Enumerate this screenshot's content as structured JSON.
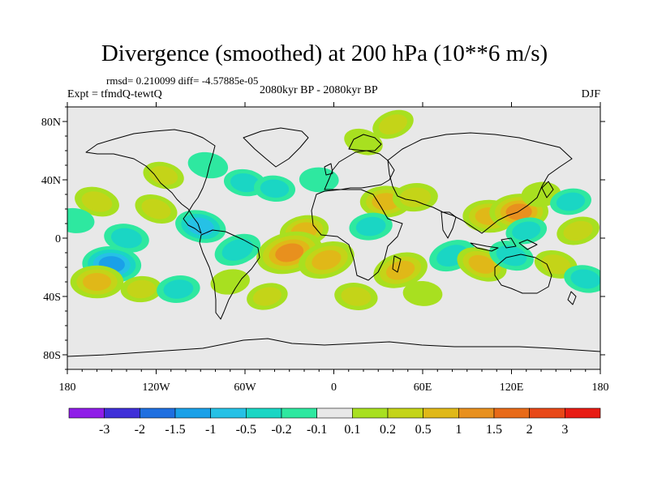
{
  "title": "Divergence (smoothed) at 200 hPa (10**6 m/s)",
  "stats": "rmsd= 0.210099 diff= -4.57885e-05",
  "experiment": "Expt = tfmdQ-tewtQ",
  "period": "2080kyr BP - 2080kyr BP",
  "season": "DJF",
  "chart_data": {
    "type": "heatmap",
    "projection": "cylindrical-equidistant",
    "xlim": [
      -180,
      180
    ],
    "ylim": [
      -90,
      90
    ],
    "x_ticks": [
      {
        "value": -180,
        "label": "180"
      },
      {
        "value": -120,
        "label": "120W"
      },
      {
        "value": -60,
        "label": "60W"
      },
      {
        "value": 0,
        "label": "0"
      },
      {
        "value": 60,
        "label": "60E"
      },
      {
        "value": 120,
        "label": "120E"
      },
      {
        "value": 180,
        "label": "180"
      }
    ],
    "y_ticks": [
      {
        "value": 80,
        "label": "80N"
      },
      {
        "value": 40,
        "label": "40N"
      },
      {
        "value": 0,
        "label": "0"
      },
      {
        "value": -40,
        "label": "40S"
      },
      {
        "value": -80,
        "label": "80S"
      }
    ],
    "colorbar": {
      "levels": [
        "-3",
        "-2",
        "-1.5",
        "-1",
        "-0.5",
        "-0.2",
        "-0.1",
        "0.1",
        "0.2",
        "0.5",
        "1",
        "1.5",
        "2",
        "3"
      ],
      "colors": [
        "#8f1de8",
        "#3f2fd8",
        "#1f6fe0",
        "#1aa0e8",
        "#26c1e6",
        "#1ad6c4",
        "#2ee8a0",
        "#e8e8e8",
        "#a8e020",
        "#c4d418",
        "#e0b818",
        "#e8901e",
        "#e86a18",
        "#e84818",
        "#e81c14"
      ]
    },
    "anomalies": [
      {
        "lon": 40,
        "lat": 78,
        "value": 0.35
      },
      {
        "lon": 20,
        "lat": 66,
        "value": 0.2
      },
      {
        "lon": -115,
        "lat": 43,
        "value": 0.3
      },
      {
        "lon": -85,
        "lat": 50,
        "value": -0.25
      },
      {
        "lon": -60,
        "lat": 38,
        "value": -0.35
      },
      {
        "lon": -40,
        "lat": 34,
        "value": -0.3
      },
      {
        "lon": -10,
        "lat": 40,
        "value": -0.2
      },
      {
        "lon": 35,
        "lat": 25,
        "value": 0.8
      },
      {
        "lon": 55,
        "lat": 28,
        "value": 0.5
      },
      {
        "lon": 25,
        "lat": 8,
        "value": -0.4
      },
      {
        "lon": -20,
        "lat": 5,
        "value": 0.7
      },
      {
        "lon": -30,
        "lat": -10,
        "value": 1.6
      },
      {
        "lon": -5,
        "lat": -15,
        "value": 1.1
      },
      {
        "lon": -65,
        "lat": -8,
        "value": -0.6
      },
      {
        "lon": -120,
        "lat": 20,
        "value": 0.4
      },
      {
        "lon": -160,
        "lat": 25,
        "value": 0.5
      },
      {
        "lon": -90,
        "lat": 8,
        "value": -0.8
      },
      {
        "lon": -140,
        "lat": 0,
        "value": -0.5
      },
      {
        "lon": -175,
        "lat": 12,
        "value": -0.2
      },
      {
        "lon": -150,
        "lat": -18,
        "value": -1.2
      },
      {
        "lon": -160,
        "lat": -30,
        "value": 0.9
      },
      {
        "lon": -130,
        "lat": -35,
        "value": 0.3
      },
      {
        "lon": -105,
        "lat": -35,
        "value": -0.4
      },
      {
        "lon": -70,
        "lat": -30,
        "value": 0.2
      },
      {
        "lon": -45,
        "lat": -40,
        "value": 0.3
      },
      {
        "lon": 45,
        "lat": -22,
        "value": 1.0
      },
      {
        "lon": 80,
        "lat": -12,
        "value": -0.6
      },
      {
        "lon": 100,
        "lat": -18,
        "value": 0.8
      },
      {
        "lon": 120,
        "lat": -12,
        "value": -0.5
      },
      {
        "lon": 150,
        "lat": -18,
        "value": 0.4
      },
      {
        "lon": 170,
        "lat": -28,
        "value": -0.4
      },
      {
        "lon": 15,
        "lat": -40,
        "value": 0.4
      },
      {
        "lon": 60,
        "lat": -38,
        "value": 0.2
      },
      {
        "lon": 105,
        "lat": 15,
        "value": 0.9
      },
      {
        "lon": 125,
        "lat": 18,
        "value": 1.2
      },
      {
        "lon": 140,
        "lat": 30,
        "value": 0.2
      },
      {
        "lon": 160,
        "lat": 25,
        "value": -0.3
      },
      {
        "lon": 130,
        "lat": 5,
        "value": -0.3
      },
      {
        "lon": 165,
        "lat": 5,
        "value": 0.4
      }
    ]
  }
}
